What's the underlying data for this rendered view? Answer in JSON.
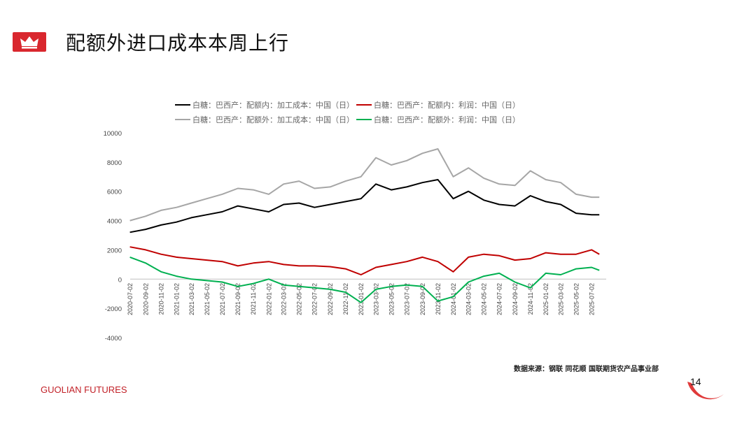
{
  "header": {
    "title": "配额外进口成本本周上行"
  },
  "colors": {
    "accent": "#d9272e",
    "black_series": "#000000",
    "red_series": "#c00000",
    "gray_series": "#a6a6a6",
    "green_series": "#00b050"
  },
  "footer": {
    "source": "数据来源：钢联 同花顺 国联期货农产品事业部",
    "brand": "GUOLIAN FUTURES",
    "page_number": "14"
  },
  "chart_data": {
    "type": "line",
    "title": "",
    "xlabel": "",
    "ylabel": "",
    "ylim": [
      -4000,
      10000
    ],
    "yticks": [
      10000,
      8000,
      6000,
      4000,
      2000,
      0,
      -2000,
      -4000
    ],
    "grid": false,
    "legend_position": "top",
    "x_start": "2020-07-02",
    "x_end": "2025-08-28",
    "x_tick_labels": [
      "2020-07-02",
      "2020-09-02",
      "2020-11-02",
      "2021-01-02",
      "2021-03-02",
      "2021-05-02",
      "2021-07-02",
      "2021-09-02",
      "2021-11-02",
      "2022-01-02",
      "2022-03-02",
      "2022-05-02",
      "2022-07-02",
      "2022-09-02",
      "2022-11-02",
      "2023-01-02",
      "2023-03-02",
      "2023-05-02",
      "2023-07-02",
      "2023-09-02",
      "2023-11-02",
      "2024-01-02",
      "2024-03-02",
      "2024-05-02",
      "2024-07-02",
      "2024-09-02",
      "2024-11-02",
      "2025-01-02",
      "2025-03-02",
      "2025-05-02",
      "2025-07-02"
    ],
    "x": [
      "2020-07",
      "2020-09",
      "2020-11",
      "2021-01",
      "2021-03",
      "2021-05",
      "2021-07",
      "2021-09",
      "2021-11",
      "2022-01",
      "2022-03",
      "2022-05",
      "2022-07",
      "2022-09",
      "2022-11",
      "2023-01",
      "2023-03",
      "2023-05",
      "2023-07",
      "2023-09",
      "2023-11",
      "2024-01",
      "2024-03",
      "2024-05",
      "2024-07",
      "2024-09",
      "2024-11",
      "2025-01",
      "2025-03",
      "2025-05",
      "2025-07",
      "2025-08"
    ],
    "series": [
      {
        "name": "白糖：巴西产：配额内：加工成本：中国（日）",
        "color": "#000000",
        "values": [
          3200,
          3400,
          3700,
          3900,
          4200,
          4400,
          4600,
          5000,
          4800,
          4600,
          5100,
          5200,
          4900,
          5100,
          5300,
          5500,
          6500,
          6100,
          6300,
          6600,
          6800,
          5500,
          6000,
          5400,
          5100,
          5000,
          5700,
          5300,
          5100,
          4500,
          4400,
          4400
        ]
      },
      {
        "name": "白糖：巴西产：配额内：利润：中国（日）",
        "color": "#c00000",
        "values": [
          2200,
          2000,
          1700,
          1500,
          1400,
          1300,
          1200,
          900,
          1100,
          1200,
          1000,
          900,
          900,
          850,
          700,
          300,
          800,
          1000,
          1200,
          1500,
          1200,
          500,
          1500,
          1700,
          1600,
          1300,
          1400,
          1800,
          1700,
          1700,
          2000,
          1700
        ]
      },
      {
        "name": "白糖：巴西产：配额外：加工成本：中国（日）",
        "color": "#a6a6a6",
        "values": [
          4000,
          4300,
          4700,
          4900,
          5200,
          5500,
          5800,
          6200,
          6100,
          5800,
          6500,
          6700,
          6200,
          6300,
          6700,
          7000,
          8300,
          7800,
          8100,
          8600,
          8900,
          7000,
          7600,
          6900,
          6500,
          6400,
          7400,
          6800,
          6600,
          5800,
          5600,
          5600
        ]
      },
      {
        "name": "白糖：巴西产：配额外：利润：中国（日）",
        "color": "#00b050",
        "values": [
          1500,
          1100,
          500,
          200,
          0,
          -100,
          -200,
          -500,
          -300,
          0,
          -400,
          -500,
          -600,
          -700,
          -900,
          -1600,
          -700,
          -500,
          -400,
          -500,
          -1500,
          -1200,
          -200,
          200,
          400,
          -200,
          -600,
          400,
          300,
          700,
          800,
          600
        ]
      }
    ]
  }
}
